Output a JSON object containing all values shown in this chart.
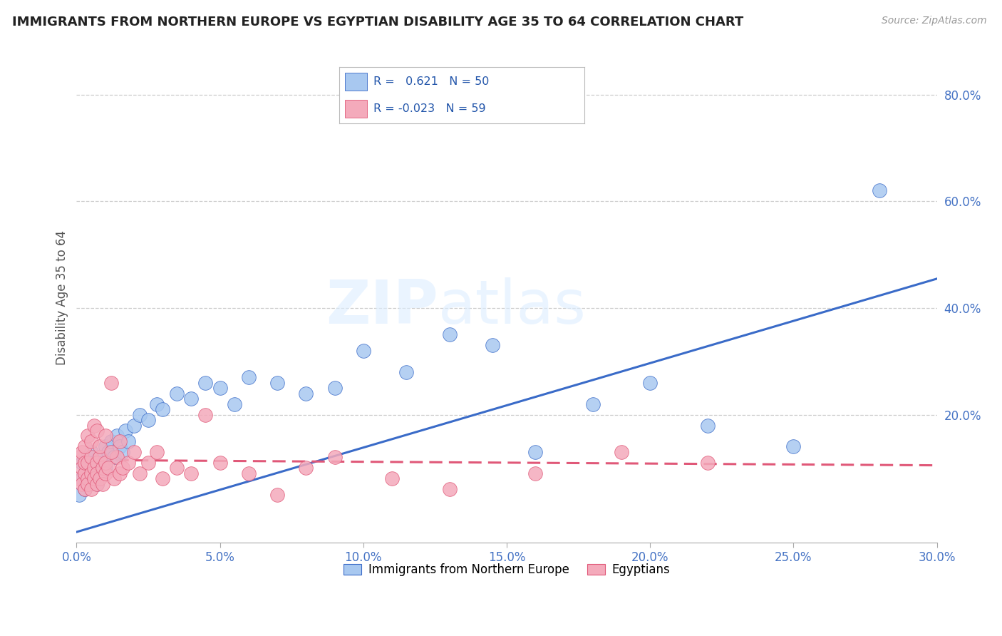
{
  "title": "IMMIGRANTS FROM NORTHERN EUROPE VS EGYPTIAN DISABILITY AGE 35 TO 64 CORRELATION CHART",
  "source": "Source: ZipAtlas.com",
  "ylabel": "Disability Age 35 to 64",
  "xlim": [
    0.0,
    0.3
  ],
  "ylim": [
    -0.04,
    0.88
  ],
  "xtick_labels": [
    "0.0%",
    "5.0%",
    "10.0%",
    "15.0%",
    "20.0%",
    "25.0%",
    "30.0%"
  ],
  "xtick_vals": [
    0.0,
    0.05,
    0.1,
    0.15,
    0.2,
    0.25,
    0.3
  ],
  "ytick_labels": [
    "20.0%",
    "40.0%",
    "60.0%",
    "80.0%"
  ],
  "ytick_vals": [
    0.2,
    0.4,
    0.6,
    0.8
  ],
  "blue_color": "#A8C8F0",
  "pink_color": "#F4AABB",
  "blue_line_color": "#3A6BC8",
  "pink_line_color": "#E05878",
  "watermark_zip": "ZIP",
  "watermark_atlas": "atlas",
  "legend_label_blue": "Immigrants from Northern Europe",
  "legend_label_pink": "Egyptians",
  "blue_scatter_x": [
    0.001,
    0.002,
    0.002,
    0.003,
    0.003,
    0.004,
    0.004,
    0.005,
    0.005,
    0.006,
    0.006,
    0.007,
    0.007,
    0.008,
    0.008,
    0.009,
    0.01,
    0.01,
    0.011,
    0.012,
    0.013,
    0.014,
    0.015,
    0.016,
    0.017,
    0.018,
    0.02,
    0.022,
    0.025,
    0.028,
    0.03,
    0.035,
    0.04,
    0.045,
    0.05,
    0.055,
    0.06,
    0.07,
    0.08,
    0.09,
    0.1,
    0.115,
    0.13,
    0.145,
    0.16,
    0.18,
    0.2,
    0.22,
    0.25,
    0.28
  ],
  "blue_scatter_y": [
    0.05,
    0.08,
    0.11,
    0.06,
    0.09,
    0.12,
    0.07,
    0.1,
    0.13,
    0.08,
    0.11,
    0.07,
    0.1,
    0.12,
    0.09,
    0.11,
    0.1,
    0.14,
    0.13,
    0.15,
    0.12,
    0.16,
    0.14,
    0.13,
    0.17,
    0.15,
    0.18,
    0.2,
    0.19,
    0.22,
    0.21,
    0.24,
    0.23,
    0.26,
    0.25,
    0.22,
    0.27,
    0.26,
    0.24,
    0.25,
    0.32,
    0.28,
    0.35,
    0.33,
    0.13,
    0.22,
    0.26,
    0.18,
    0.14,
    0.62
  ],
  "pink_scatter_x": [
    0.001,
    0.001,
    0.002,
    0.002,
    0.002,
    0.003,
    0.003,
    0.003,
    0.004,
    0.004,
    0.004,
    0.005,
    0.005,
    0.005,
    0.006,
    0.006,
    0.007,
    0.007,
    0.007,
    0.008,
    0.008,
    0.009,
    0.009,
    0.01,
    0.01,
    0.011,
    0.012,
    0.013,
    0.014,
    0.015,
    0.016,
    0.018,
    0.02,
    0.022,
    0.025,
    0.028,
    0.03,
    0.035,
    0.04,
    0.045,
    0.05,
    0.06,
    0.07,
    0.08,
    0.09,
    0.11,
    0.13,
    0.16,
    0.19,
    0.22,
    0.003,
    0.004,
    0.005,
    0.006,
    0.007,
    0.008,
    0.01,
    0.012,
    0.015
  ],
  "pink_scatter_y": [
    0.08,
    0.12,
    0.07,
    0.1,
    0.13,
    0.09,
    0.11,
    0.06,
    0.08,
    0.11,
    0.07,
    0.09,
    0.12,
    0.06,
    0.1,
    0.08,
    0.11,
    0.07,
    0.09,
    0.12,
    0.08,
    0.1,
    0.07,
    0.09,
    0.11,
    0.1,
    0.26,
    0.08,
    0.12,
    0.09,
    0.1,
    0.11,
    0.13,
    0.09,
    0.11,
    0.13,
    0.08,
    0.1,
    0.09,
    0.2,
    0.11,
    0.09,
    0.05,
    0.1,
    0.12,
    0.08,
    0.06,
    0.09,
    0.13,
    0.11,
    0.14,
    0.16,
    0.15,
    0.18,
    0.17,
    0.14,
    0.16,
    0.13,
    0.15
  ],
  "blue_line_x0": 0.0,
  "blue_line_y0": -0.02,
  "blue_line_x1": 0.3,
  "blue_line_y1": 0.455,
  "pink_line_x0": 0.0,
  "pink_line_y0": 0.115,
  "pink_line_x1": 0.3,
  "pink_line_y1": 0.105
}
